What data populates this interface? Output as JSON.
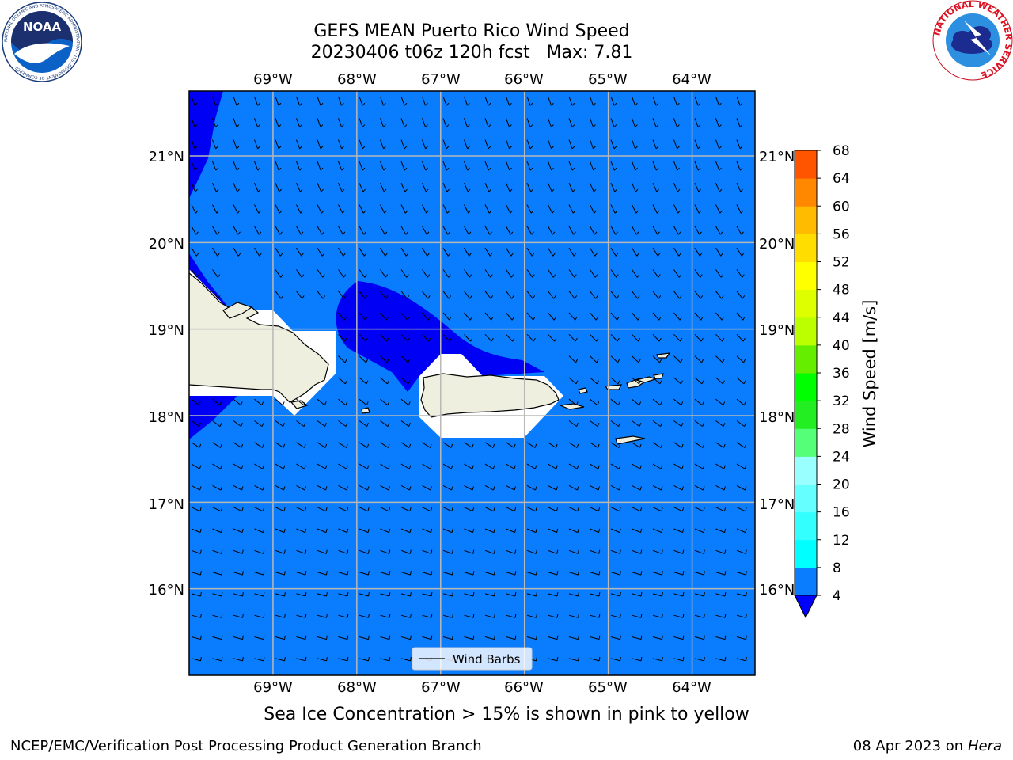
{
  "title": {
    "line1": "GEFS MEAN Puerto Rico Wind Speed",
    "line2": "20230406 t06z 120h fcst   Max: 7.81"
  },
  "map": {
    "lon_labels": [
      "69°W",
      "68°W",
      "67°W",
      "66°W",
      "65°W",
      "64°W"
    ],
    "lat_labels": [
      "21°N",
      "20°N",
      "19°N",
      "18°N",
      "17°N",
      "16°N"
    ],
    "lon_values": [
      -69,
      -68,
      -67,
      -66,
      -65,
      -64
    ],
    "lat_values": [
      21,
      20,
      19,
      18,
      17,
      16
    ],
    "lon_range": [
      -70,
      -63.25
    ],
    "lat_range": [
      15,
      21.75
    ],
    "ocean_color": "#0a7dff",
    "low_wind_color": "#0000f5",
    "land_color": "#efefdf",
    "grid": true,
    "legend_label": "Wind Barbs"
  },
  "colorbar": {
    "label": "Wind Speed [m/s]",
    "ticks": [
      "68",
      "64",
      "60",
      "56",
      "52",
      "48",
      "44",
      "40",
      "36",
      "32",
      "28",
      "24",
      "20",
      "16",
      "12",
      "8",
      "4"
    ],
    "levels": [
      4,
      8,
      12,
      16,
      20,
      24,
      28,
      32,
      36,
      40,
      44,
      48,
      52,
      56,
      60,
      64,
      68
    ],
    "colors": [
      "#0a7dff",
      "#00ffff",
      "#33ffff",
      "#66ffff",
      "#99ffff",
      "#55ff77",
      "#22ee22",
      "#00ff00",
      "#66ee00",
      "#bbff00",
      "#ddff00",
      "#ffff00",
      "#ffdd00",
      "#ffbb00",
      "#ff8800",
      "#ff5500",
      "#ff2200",
      "#ff0000"
    ],
    "extend_min_color": "#0000ff"
  },
  "caption": "Sea Ice Concentration > 15% is shown in pink to yellow",
  "footer": {
    "left": "NCEP/EMC/Verification Post Processing Product Generation Branch",
    "date": "08 Apr 2023 on ",
    "machine": "Hera"
  },
  "logos": {
    "noaa_text": "NOAA",
    "noaa_ring": "NATIONAL OCEANIC AND ATMOSPHERIC ADMINISTRATION · U.S. DEPARTMENT OF COMMERCE",
    "nws_ring": "NATIONAL WEATHER SERVICE"
  }
}
